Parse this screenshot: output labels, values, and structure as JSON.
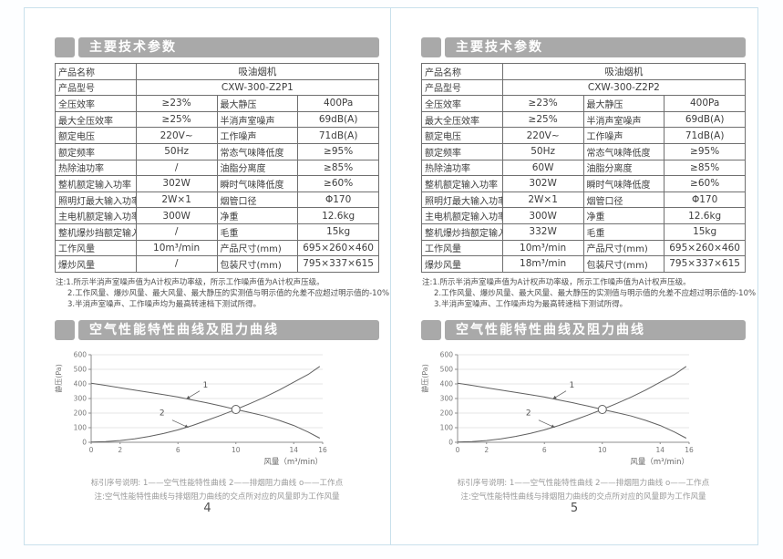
{
  "colors": {
    "header_bar": "#a9a9a9",
    "page_border": "#c9e0ec",
    "table_border": "#6f6f6f",
    "curve": "#5f5f5f",
    "gridline": "#dcdcdc",
    "axis": "#8c8c8c"
  },
  "shared": {
    "section1_title": "主要技术参数",
    "section2_title": "空气性能特性曲线及阻力曲线",
    "notes": [
      "注:1.所示半消声室噪声值为A计权声功率级，所示工作噪声值为A计权声压级。",
      "2.工作风量、爆炒风量、最大风量、最大静压的实测值与明示值的允差不应超过明示值的-10%",
      "3.半消声室噪声、工作噪声均为最高转速档下测试所得。"
    ],
    "caption": [
      "标引序号说明: 1——空气性能特性曲线  2——排烟阻力曲线  o——工作点",
      "注:空气性能特性曲线与排烟阻力曲线的交点所对应的风量即为工作风量"
    ]
  },
  "pages": [
    {
      "page_number": "4",
      "table": {
        "rows": [
          [
            {
              "t": "产品名称"
            },
            {
              "t": "吸油烟机",
              "span": 3
            }
          ],
          [
            {
              "t": "产品型号"
            },
            {
              "t": "CXW-300-Z2P1",
              "span": 3
            }
          ],
          [
            {
              "t": "全压效率"
            },
            {
              "t": "≥23%"
            },
            {
              "t": "最大静压"
            },
            {
              "t": "400Pa"
            }
          ],
          [
            {
              "t": "最大全压效率"
            },
            {
              "t": "≥25%"
            },
            {
              "t": "半消声室噪声"
            },
            {
              "t": "69dB(A)"
            }
          ],
          [
            {
              "t": "额定电压"
            },
            {
              "t": "220V~"
            },
            {
              "t": "工作噪声"
            },
            {
              "t": "71dB(A)"
            }
          ],
          [
            {
              "t": "额定频率"
            },
            {
              "t": "50Hz"
            },
            {
              "t": "常态气味降低度"
            },
            {
              "t": "≥95%"
            }
          ],
          [
            {
              "t": "热除油功率"
            },
            {
              "t": "/"
            },
            {
              "t": "油脂分离度"
            },
            {
              "t": "≥85%"
            }
          ],
          [
            {
              "t": "整机额定输入功率"
            },
            {
              "t": "302W"
            },
            {
              "t": "瞬时气味降低度"
            },
            {
              "t": "≥60%"
            }
          ],
          [
            {
              "t": "照明灯最大输入功率"
            },
            {
              "t": "2W×1"
            },
            {
              "t": "烟管口径"
            },
            {
              "t": "Φ170"
            }
          ],
          [
            {
              "t": "主电机额定输入功率"
            },
            {
              "t": "300W"
            },
            {
              "t": "净重"
            },
            {
              "t": "12.6kg"
            }
          ],
          [
            {
              "t": "整机爆炒挡额定输入功率"
            },
            {
              "t": "/"
            },
            {
              "t": "毛重"
            },
            {
              "t": "15kg"
            }
          ],
          [
            {
              "t": "工作风量"
            },
            {
              "t": "10m³/min"
            },
            {
              "t": "产品尺寸(mm)"
            },
            {
              "t": "695×260×460"
            }
          ],
          [
            {
              "t": "爆炒风量"
            },
            {
              "t": "/"
            },
            {
              "t": "包装尺寸(mm)"
            },
            {
              "t": "795×337×615"
            }
          ]
        ]
      }
    },
    {
      "page_number": "5",
      "table": {
        "rows": [
          [
            {
              "t": "产品名称"
            },
            {
              "t": "吸油烟机",
              "span": 3
            }
          ],
          [
            {
              "t": "产品型号"
            },
            {
              "t": "CXW-300-Z2P2",
              "span": 3
            }
          ],
          [
            {
              "t": "全压效率"
            },
            {
              "t": "≥23%"
            },
            {
              "t": "最大静压"
            },
            {
              "t": "400Pa"
            }
          ],
          [
            {
              "t": "最大全压效率"
            },
            {
              "t": "≥25%"
            },
            {
              "t": "半消声室噪声"
            },
            {
              "t": "69dB(A)"
            }
          ],
          [
            {
              "t": "额定电压"
            },
            {
              "t": "220V~"
            },
            {
              "t": "工作噪声"
            },
            {
              "t": "71dB(A)"
            }
          ],
          [
            {
              "t": "额定频率"
            },
            {
              "t": "50Hz"
            },
            {
              "t": "常态气味降低度"
            },
            {
              "t": "≥95%"
            }
          ],
          [
            {
              "t": "热除油功率"
            },
            {
              "t": "60W"
            },
            {
              "t": "油脂分离度"
            },
            {
              "t": "≥85%"
            }
          ],
          [
            {
              "t": "整机额定输入功率"
            },
            {
              "t": "302W"
            },
            {
              "t": "瞬时气味降低度"
            },
            {
              "t": "≥60%"
            }
          ],
          [
            {
              "t": "照明灯最大输入功率"
            },
            {
              "t": "2W×1"
            },
            {
              "t": "烟管口径"
            },
            {
              "t": "Φ170"
            }
          ],
          [
            {
              "t": "主电机额定输入功率"
            },
            {
              "t": "300W"
            },
            {
              "t": "净重"
            },
            {
              "t": "12.6kg"
            }
          ],
          [
            {
              "t": "整机爆炒挡额定输入功率"
            },
            {
              "t": "332W"
            },
            {
              "t": "毛重"
            },
            {
              "t": "15kg"
            }
          ],
          [
            {
              "t": "工作风量"
            },
            {
              "t": "10m³/min"
            },
            {
              "t": "产品尺寸(mm)"
            },
            {
              "t": "695×260×460"
            }
          ],
          [
            {
              "t": "爆炒风量"
            },
            {
              "t": "18m³/min"
            },
            {
              "t": "包装尺寸(mm)"
            },
            {
              "t": "795×337×615"
            }
          ]
        ]
      }
    }
  ],
  "chart_data": {
    "type": "line",
    "title": "空气性能特性曲线及阻力曲线",
    "xlabel": "风量（m³/min）",
    "ylabel": "静压(Pa)",
    "xlim": [
      0,
      16
    ],
    "ylim": [
      0,
      600
    ],
    "x_ticks": [
      0,
      2,
      6,
      10,
      14,
      16
    ],
    "y_ticks": [
      0,
      100,
      200,
      300,
      400,
      500,
      600
    ],
    "grid": "horizontal",
    "legend_position": "below (text caption)",
    "series": [
      {
        "name": "1 空气性能特性曲线",
        "x": [
          0,
          1,
          2,
          3,
          4,
          5,
          6,
          7,
          8,
          9,
          10,
          11,
          12,
          13,
          14,
          15,
          15.8
        ],
        "y": [
          405,
          390,
          374,
          358,
          342,
          326,
          310,
          290,
          270,
          248,
          225,
          203,
          180,
          150,
          115,
          70,
          28
        ]
      },
      {
        "name": "2 排烟阻力曲线",
        "x": [
          0,
          1,
          2,
          3,
          4,
          5,
          6,
          7,
          8,
          9,
          10,
          11,
          12,
          13,
          14,
          15,
          15.8
        ],
        "y": [
          2,
          5,
          12,
          24,
          40,
          60,
          85,
          115,
          150,
          186,
          225,
          266,
          310,
          358,
          412,
          465,
          520
        ]
      }
    ],
    "working_point": {
      "x": 10,
      "y": 225,
      "symbol": "o"
    },
    "annotations": [
      {
        "label": "1",
        "label_x": 7.9,
        "label_y": 375,
        "line": [
          [
            7.5,
            352
          ],
          [
            6.6,
            298
          ]
        ]
      },
      {
        "label": "2",
        "label_x": 4.9,
        "label_y": 185,
        "line": [
          [
            5.6,
            152
          ],
          [
            6.7,
            102
          ]
        ]
      }
    ]
  }
}
